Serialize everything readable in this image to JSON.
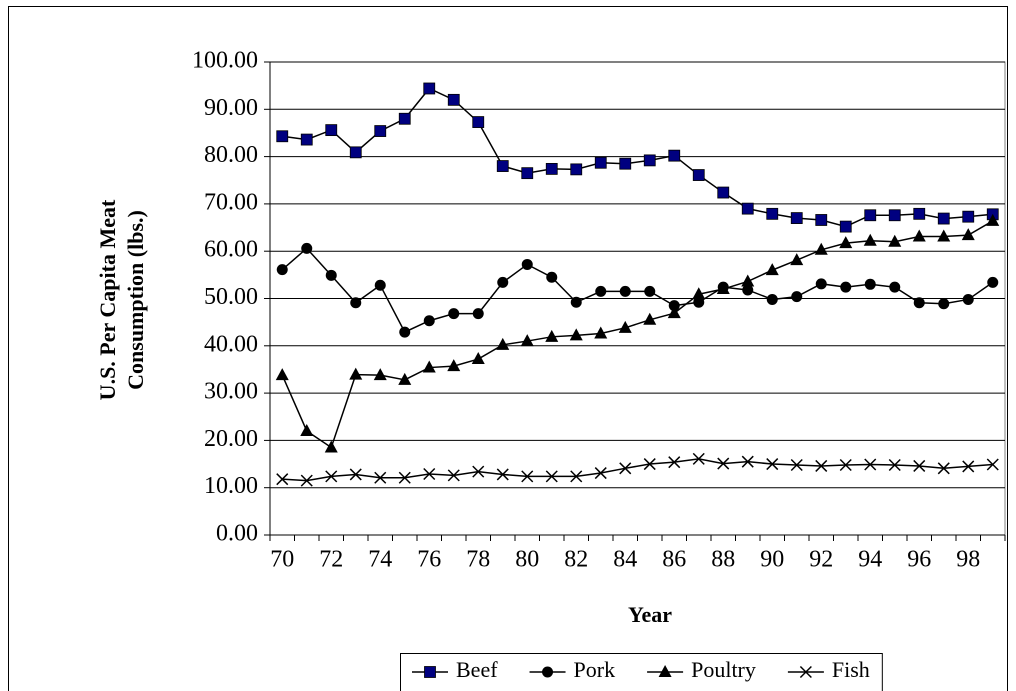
{
  "chart_data": {
    "type": "line",
    "x_label": "Year",
    "y_label": [
      "U.S. Per Capita Meat",
      "Consumption (lbs.)"
    ],
    "categories": [
      "70",
      null,
      "72",
      null,
      "74",
      null,
      "76",
      null,
      "78",
      null,
      "80",
      null,
      "82",
      null,
      "84",
      null,
      "86",
      null,
      "88",
      null,
      "90",
      null,
      "92",
      null,
      "94",
      null,
      "96",
      null,
      "98",
      null
    ],
    "series": [
      {
        "name": "Beef",
        "color": "#000080",
        "marker": "square",
        "values": [
          84.3,
          83.6,
          85.6,
          80.9,
          85.4,
          88.0,
          94.4,
          92.0,
          87.3,
          78.0,
          76.5,
          77.4,
          77.3,
          78.7,
          78.5,
          79.2,
          80.2,
          76.1,
          72.4,
          69.0,
          67.9,
          67.0,
          66.6,
          65.2,
          67.6,
          67.6,
          67.9,
          66.9,
          67.3,
          67.8
        ]
      },
      {
        "name": "Pork",
        "color": "#000000",
        "marker": "circle",
        "values": [
          56.1,
          60.6,
          54.9,
          49.1,
          52.8,
          42.9,
          45.3,
          46.8,
          46.8,
          53.4,
          57.2,
          54.5,
          49.2,
          51.5,
          51.5,
          51.5,
          48.5,
          49.2,
          52.4,
          51.8,
          49.8,
          50.4,
          53.1,
          52.4,
          53.0,
          52.4,
          49.1,
          48.9,
          49.8,
          53.4
        ]
      },
      {
        "name": "Poultry",
        "color": "#000000",
        "marker": "triangle",
        "values": [
          33.8,
          22.0,
          18.5,
          33.9,
          33.8,
          32.8,
          35.4,
          35.7,
          37.2,
          40.2,
          41.0,
          41.9,
          42.2,
          42.6,
          43.8,
          45.5,
          46.9,
          50.9,
          52.0,
          53.6,
          56.0,
          58.1,
          60.3,
          61.7,
          62.2,
          62.0,
          63.1,
          63.1,
          63.4,
          66.4
        ]
      },
      {
        "name": "Fish",
        "color": "#000000",
        "marker": "x",
        "values": [
          11.8,
          11.5,
          12.4,
          12.8,
          12.1,
          12.1,
          12.9,
          12.6,
          13.4,
          12.8,
          12.4,
          12.4,
          12.4,
          13.1,
          14.1,
          15.0,
          15.4,
          16.1,
          15.1,
          15.5,
          15.0,
          14.8,
          14.6,
          14.8,
          14.9,
          14.8,
          14.6,
          14.1,
          14.5,
          14.9
        ]
      }
    ],
    "ylim": [
      0,
      100
    ],
    "yticks": [
      {
        "value": 0,
        "label": "0.00"
      },
      {
        "value": 10,
        "label": "10.00"
      },
      {
        "value": 20,
        "label": "20.00"
      },
      {
        "value": 30,
        "label": "30.00"
      },
      {
        "value": 40,
        "label": "40.00"
      },
      {
        "value": 50,
        "label": "50.00"
      },
      {
        "value": 60,
        "label": "60.00"
      },
      {
        "value": 70,
        "label": "70.00"
      },
      {
        "value": 80,
        "label": "80.00"
      },
      {
        "value": 90,
        "label": "90.00"
      },
      {
        "value": 100,
        "label": "100.00"
      }
    ],
    "grid": true,
    "legend": "bottom"
  }
}
